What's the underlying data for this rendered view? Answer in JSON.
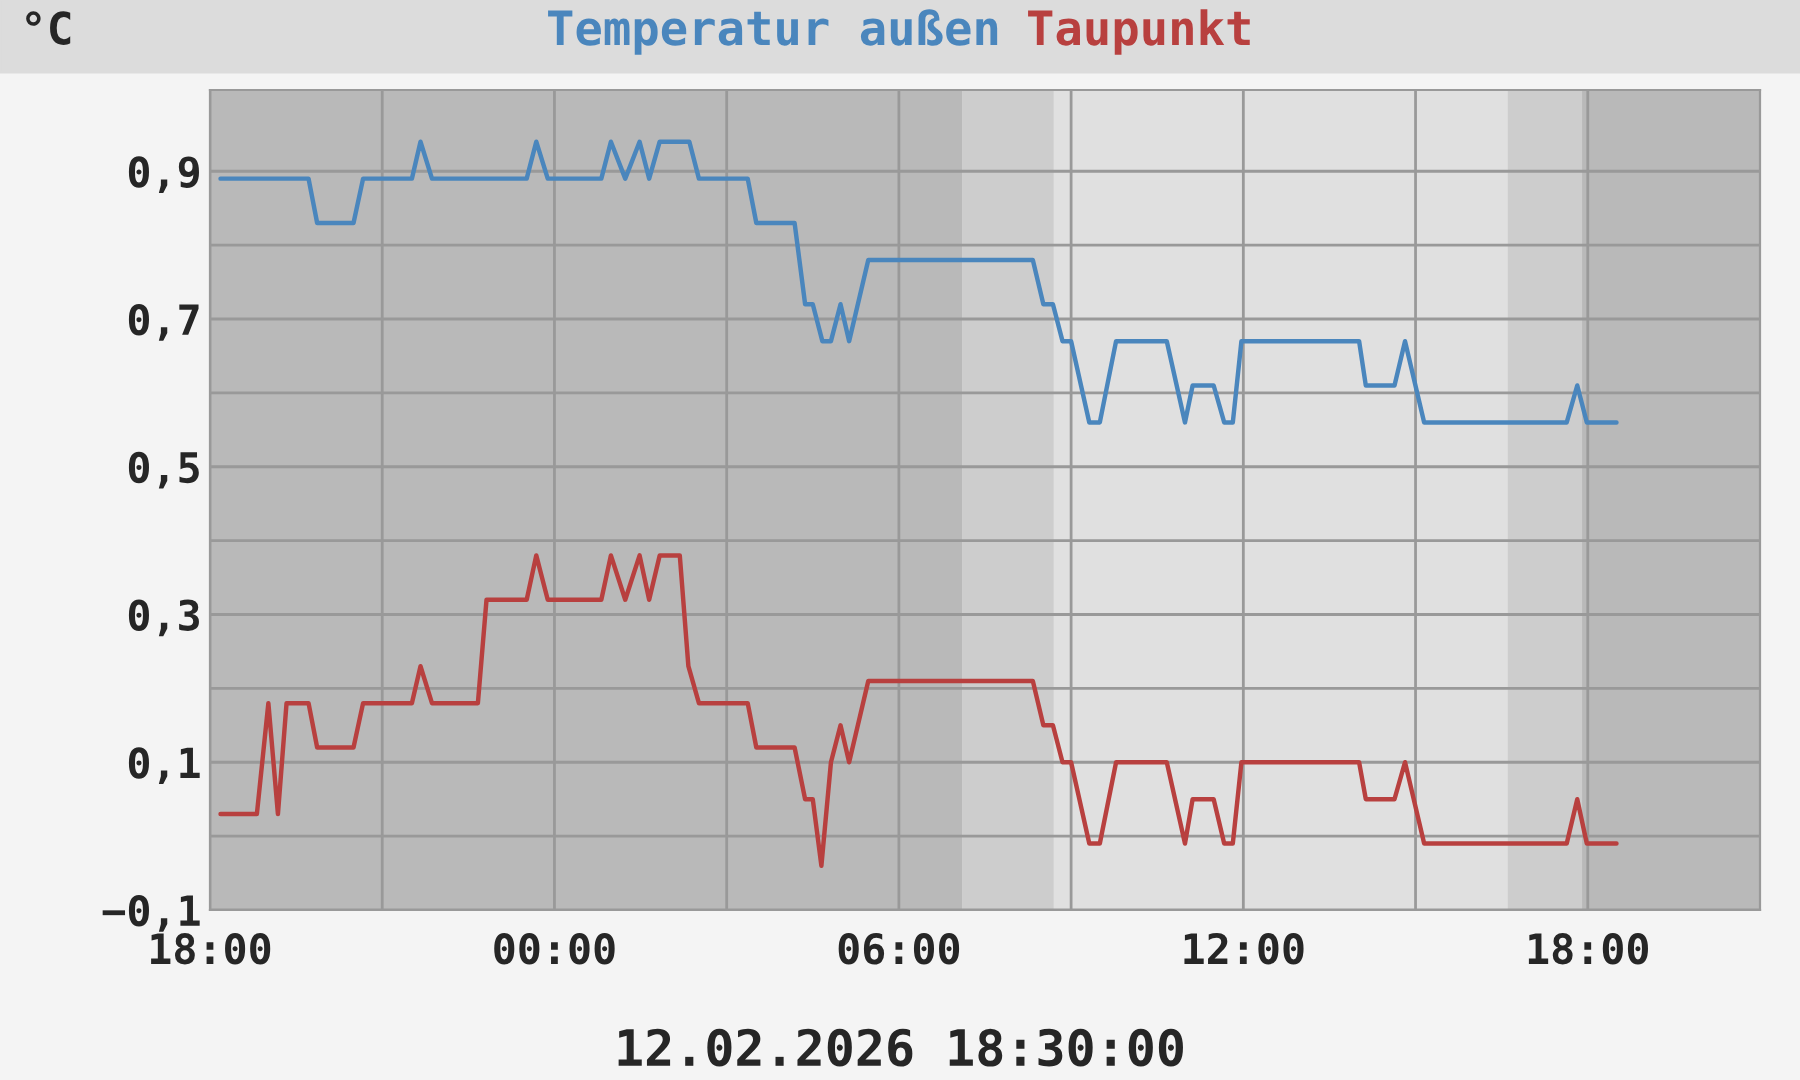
{
  "chart_data": {
    "type": "line",
    "ylabel": "°C",
    "xlabel": "12.02.2026 18:30:00",
    "xlim": [
      "2026-02-11T18:00",
      "2026-02-12T21:00"
    ],
    "ylim": [
      -0.1,
      1.01
    ],
    "xticks": [
      {
        "value": "2026-02-11T18:00",
        "label": "18:00"
      },
      {
        "value": "2026-02-11T21:00",
        "label": null
      },
      {
        "value": "2026-02-12T00:00",
        "label": "00:00"
      },
      {
        "value": "2026-02-12T03:00",
        "label": null
      },
      {
        "value": "2026-02-12T06:00",
        "label": "06:00"
      },
      {
        "value": "2026-02-12T09:00",
        "label": null
      },
      {
        "value": "2026-02-12T12:00",
        "label": "12:00"
      },
      {
        "value": "2026-02-12T15:00",
        "label": null
      },
      {
        "value": "2026-02-12T18:00",
        "label": "18:00"
      }
    ],
    "yticks": [
      {
        "value": -0.1,
        "label": "−0,1"
      },
      {
        "value": 0,
        "label": null
      },
      {
        "value": 0.1,
        "label": "0,1"
      },
      {
        "value": 0.2,
        "label": null
      },
      {
        "value": 0.3,
        "label": "0,3"
      },
      {
        "value": 0.4,
        "label": null
      },
      {
        "value": 0.5,
        "label": "0,5"
      },
      {
        "value": 0.6,
        "label": null
      },
      {
        "value": 0.7,
        "label": "0,7"
      },
      {
        "value": 0.8,
        "label": null
      },
      {
        "value": 0.9,
        "label": "0,9"
      }
    ],
    "grid": true,
    "legend": "top",
    "line_style": "solid",
    "marker": "none",
    "bands": [
      {
        "axis": "x",
        "from": "2026-02-11T18:00",
        "to": "2026-02-12T07:06",
        "color": "#b9b9b9"
      },
      {
        "axis": "x",
        "from": "2026-02-12T07:06",
        "to": "2026-02-12T08:42",
        "color": "#cdcdcd"
      },
      {
        "axis": "x",
        "from": "2026-02-12T08:42",
        "to": "2026-02-12T16:36",
        "color": "#e0e0e0"
      },
      {
        "axis": "x",
        "from": "2026-02-12T16:36",
        "to": "2026-02-12T17:54",
        "color": "#cdcdcd"
      },
      {
        "axis": "x",
        "from": "2026-02-12T17:54",
        "to": "2026-02-12T21:00",
        "color": "#b9b9b9"
      }
    ],
    "series": [
      {
        "name": "Temperatur außen",
        "color": "#4a86bd",
        "x": [
          "2026-02-11T18:11",
          "2026-02-11T19:43",
          "2026-02-11T19:52",
          "2026-02-11T20:30",
          "2026-02-11T20:40",
          "2026-02-11T21:31",
          "2026-02-11T21:40",
          "2026-02-11T21:52",
          "2026-02-11T23:31",
          "2026-02-11T23:41",
          "2026-02-11T23:53",
          "2026-02-12T00:49",
          "2026-02-12T00:59",
          "2026-02-12T01:14",
          "2026-02-12T01:29",
          "2026-02-12T01:39",
          "2026-02-12T01:50",
          "2026-02-12T02:21",
          "2026-02-12T02:31",
          "2026-02-12T03:22",
          "2026-02-12T03:31",
          "2026-02-12T04:11",
          "2026-02-12T04:22",
          "2026-02-12T04:30",
          "2026-02-12T04:40",
          "2026-02-12T04:49",
          "2026-02-12T04:59",
          "2026-02-12T05:08",
          "2026-02-12T05:28",
          "2026-02-12T08:20",
          "2026-02-12T08:31",
          "2026-02-12T08:41",
          "2026-02-12T08:51",
          "2026-02-12T09:00",
          "2026-02-12T09:19",
          "2026-02-12T09:30",
          "2026-02-12T09:47",
          "2026-02-12T10:40",
          "2026-02-12T10:59",
          "2026-02-12T11:07",
          "2026-02-12T11:29",
          "2026-02-12T11:40",
          "2026-02-12T11:49",
          "2026-02-12T11:58",
          "2026-02-12T14:01",
          "2026-02-12T14:08",
          "2026-02-12T14:38",
          "2026-02-12T14:49",
          "2026-02-12T15:09",
          "2026-02-12T17:38",
          "2026-02-12T17:49",
          "2026-02-12T17:59",
          "2026-02-12T18:30"
        ],
        "values": [
          0.89,
          0.89,
          0.83,
          0.83,
          0.89,
          0.89,
          0.94,
          0.89,
          0.89,
          0.94,
          0.89,
          0.89,
          0.94,
          0.89,
          0.94,
          0.89,
          0.94,
          0.94,
          0.89,
          0.89,
          0.83,
          0.83,
          0.72,
          0.72,
          0.67,
          0.67,
          0.72,
          0.67,
          0.78,
          0.78,
          0.72,
          0.72,
          0.67,
          0.67,
          0.56,
          0.56,
          0.67,
          0.67,
          0.56,
          0.61,
          0.61,
          0.56,
          0.56,
          0.67,
          0.67,
          0.61,
          0.61,
          0.67,
          0.56,
          0.56,
          0.61,
          0.56,
          0.56
        ]
      },
      {
        "name": "Taupunkt",
        "color": "#b8403f",
        "x": [
          "2026-02-11T18:11",
          "2026-02-11T18:49",
          "2026-02-11T19:01",
          "2026-02-11T19:11",
          "2026-02-11T19:20",
          "2026-02-11T19:43",
          "2026-02-11T19:52",
          "2026-02-11T20:30",
          "2026-02-11T20:40",
          "2026-02-11T21:31",
          "2026-02-11T21:40",
          "2026-02-11T21:52",
          "2026-02-11T22:40",
          "2026-02-11T22:49",
          "2026-02-11T23:31",
          "2026-02-11T23:41",
          "2026-02-11T23:53",
          "2026-02-12T00:49",
          "2026-02-12T00:59",
          "2026-02-12T01:14",
          "2026-02-12T01:29",
          "2026-02-12T01:39",
          "2026-02-12T01:50",
          "2026-02-12T02:11",
          "2026-02-12T02:20",
          "2026-02-12T02:31",
          "2026-02-12T03:22",
          "2026-02-12T03:31",
          "2026-02-12T04:11",
          "2026-02-12T04:22",
          "2026-02-12T04:30",
          "2026-02-12T04:39",
          "2026-02-12T04:49",
          "2026-02-12T04:59",
          "2026-02-12T05:08",
          "2026-02-12T05:28",
          "2026-02-12T08:20",
          "2026-02-12T08:31",
          "2026-02-12T08:41",
          "2026-02-12T08:51",
          "2026-02-12T09:00",
          "2026-02-12T09:19",
          "2026-02-12T09:30",
          "2026-02-12T09:47",
          "2026-02-12T10:40",
          "2026-02-12T10:59",
          "2026-02-12T11:07",
          "2026-02-12T11:29",
          "2026-02-12T11:40",
          "2026-02-12T11:49",
          "2026-02-12T11:58",
          "2026-02-12T14:01",
          "2026-02-12T14:08",
          "2026-02-12T14:38",
          "2026-02-12T14:49",
          "2026-02-12T15:09",
          "2026-02-12T17:38",
          "2026-02-12T17:49",
          "2026-02-12T17:59",
          "2026-02-12T18:30"
        ],
        "values": [
          0.03,
          0.03,
          0.18,
          0.03,
          0.18,
          0.18,
          0.12,
          0.12,
          0.18,
          0.18,
          0.23,
          0.18,
          0.18,
          0.32,
          0.32,
          0.38,
          0.32,
          0.32,
          0.38,
          0.32,
          0.38,
          0.32,
          0.38,
          0.38,
          0.23,
          0.18,
          0.18,
          0.12,
          0.12,
          0.05,
          0.05,
          -0.04,
          0.1,
          0.15,
          0.1,
          0.21,
          0.21,
          0.15,
          0.15,
          0.1,
          0.1,
          -0.01,
          -0.01,
          0.1,
          0.1,
          -0.01,
          0.05,
          0.05,
          -0.01,
          -0.01,
          0.1,
          0.1,
          0.05,
          0.05,
          0.1,
          -0.01,
          -0.01,
          0.05,
          -0.01,
          -0.01
        ]
      }
    ]
  }
}
